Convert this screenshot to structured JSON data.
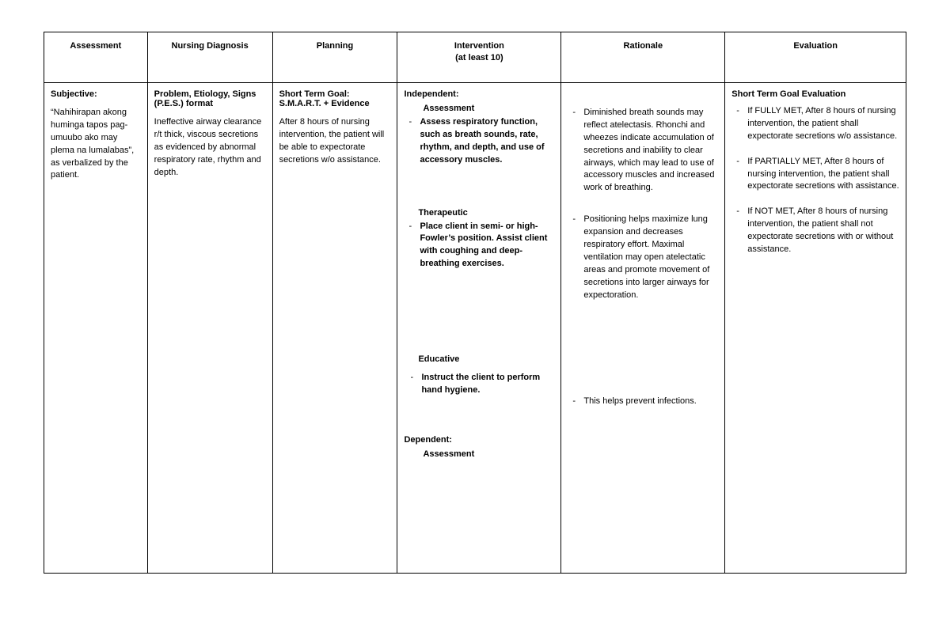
{
  "columns": [
    {
      "label": "Assessment",
      "width": "12%"
    },
    {
      "label": "Nursing Diagnosis",
      "width": "14.5%"
    },
    {
      "label": "Planning",
      "width": "14.5%"
    },
    {
      "label": "Intervention\n(at least 10)",
      "width": "19%"
    },
    {
      "label": "Rationale",
      "width": "19%"
    },
    {
      "label": "Evaluation",
      "width": "21%"
    }
  ],
  "assessment": {
    "heading": "Subjective:",
    "text": "“Nahihirapan akong huminga tapos pag-umuubo ako may plema na lumalabas”, as verbalized by the patient."
  },
  "diagnosis": {
    "heading": "Problem, Etiology, Signs (P.E.S.) format",
    "text": "Ineffective airway clearance r/t thick, viscous secretions as evidenced by abnormal respiratory rate, rhythm and depth."
  },
  "planning": {
    "heading": "Short Term Goal: S.M.A.R.T. + Evidence",
    "text": "After 8 hours of nursing intervention, the patient will be able to expectorate secretions w/o assistance."
  },
  "intervention": {
    "independent_label": "Independent:",
    "assessment_label": "Assessment",
    "assessment_item": "Assess respiratory function, such as breath sounds, rate, rhythm, and depth, and use of accessory muscles.",
    "therapeutic_label": "Therapeutic",
    "therapeutic_item": "Place client in semi- or high-Fowler’s position. Assist client with coughing and deep-breathing exercises.",
    "educative_label": "Educative",
    "educative_item": "Instruct the client to perform hand hygiene.",
    "dependent_label": "Dependent:",
    "dependent_assessment_label": "Assessment"
  },
  "rationale": {
    "item1": "Diminished breath sounds may reflect atelectasis. Rhonchi and wheezes indicate accumulation of secretions and inability to clear airways, which may lead to use of accessory muscles and increased work of breathing.",
    "item2": "Positioning helps maximize lung expansion and decreases respiratory effort. Maximal ventilation may open atelectatic areas and promote movement of secretions into larger airways for expectoration.",
    "item3": "This helps prevent infections."
  },
  "evaluation": {
    "heading": "Short Term Goal Evaluation",
    "item1": "If FULLY MET, After 8 hours of nursing intervention, the patient shall expectorate secretions w/o assistance.",
    "item2": "If PARTIALLY MET, After 8 hours of nursing intervention, the patient shall expectorate secretions with assistance.",
    "item3": "If NOT MET, After 8 hours of nursing intervention, the patient shall not expectorate secretions with or without assistance."
  }
}
